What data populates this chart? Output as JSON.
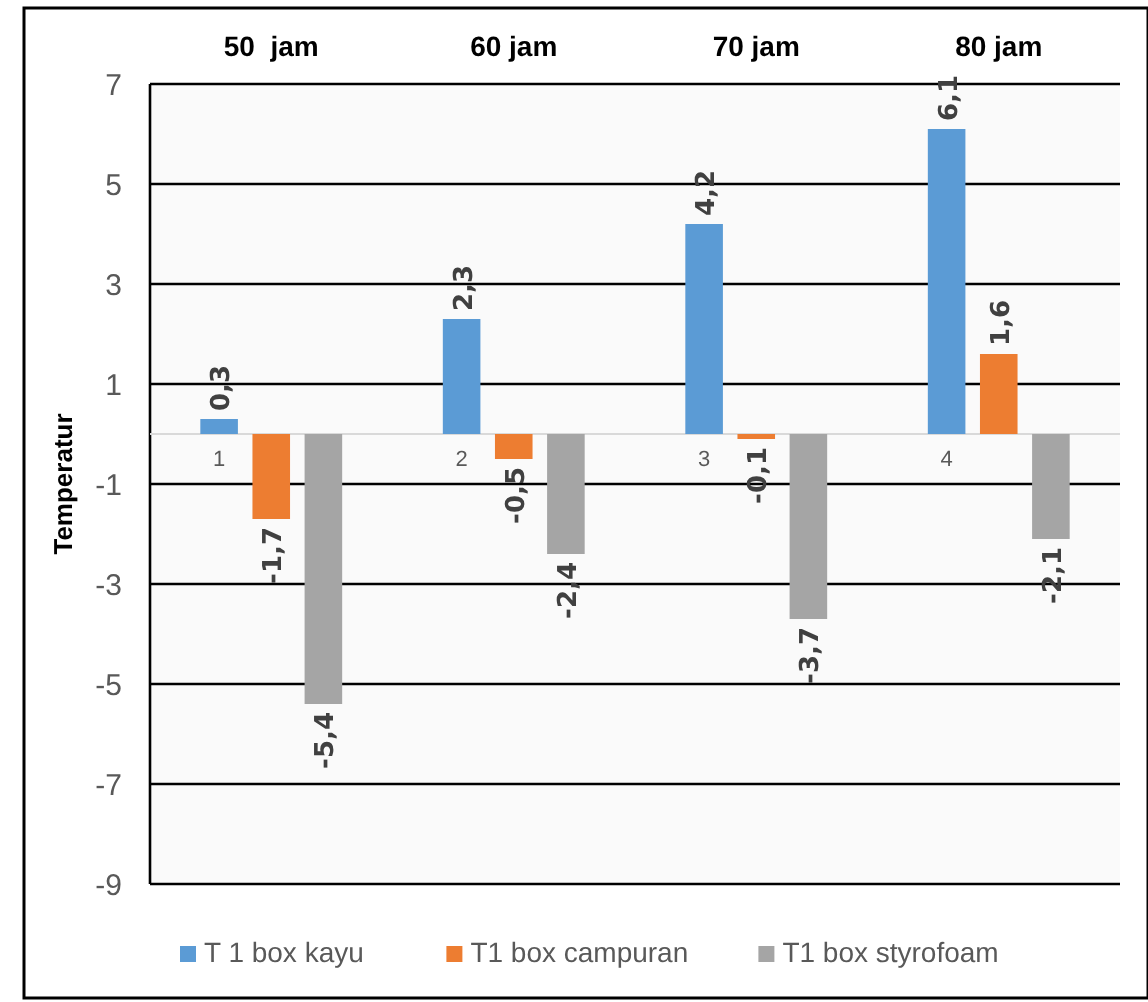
{
  "chart_data": {
    "type": "bar",
    "ylabel": "Temperatur",
    "categories": [
      "1",
      "2",
      "3",
      "4"
    ],
    "annotations": [
      "50  jam",
      "60 jam",
      "70 jam",
      "80 jam"
    ],
    "series": [
      {
        "name": "T 1 box kayu",
        "color": "#5b9bd5",
        "values": [
          0.3,
          2.3,
          4.2,
          6.1
        ],
        "value_labels": [
          "0,3",
          "2,3",
          "4,2",
          "6,1"
        ]
      },
      {
        "name": "T1 box campuran",
        "color": "#ed7d31",
        "values": [
          -1.7,
          -0.5,
          -0.1,
          1.6
        ],
        "value_labels": [
          "-1,7",
          "-0,5",
          "-0,1",
          "1,6"
        ]
      },
      {
        "name": "T1 box styrofoam",
        "color": "#a5a5a5",
        "values": [
          -5.4,
          -2.4,
          -3.7,
          -2.1
        ],
        "value_labels": [
          "-5,4",
          "-2,4",
          "-3,7",
          "-2,1"
        ]
      }
    ],
    "ylim": [
      -9,
      7
    ],
    "yticks": [
      -9,
      -7,
      -5,
      -3,
      -1,
      1,
      3,
      5,
      7
    ],
    "grid": "y",
    "legend": "bottom"
  }
}
